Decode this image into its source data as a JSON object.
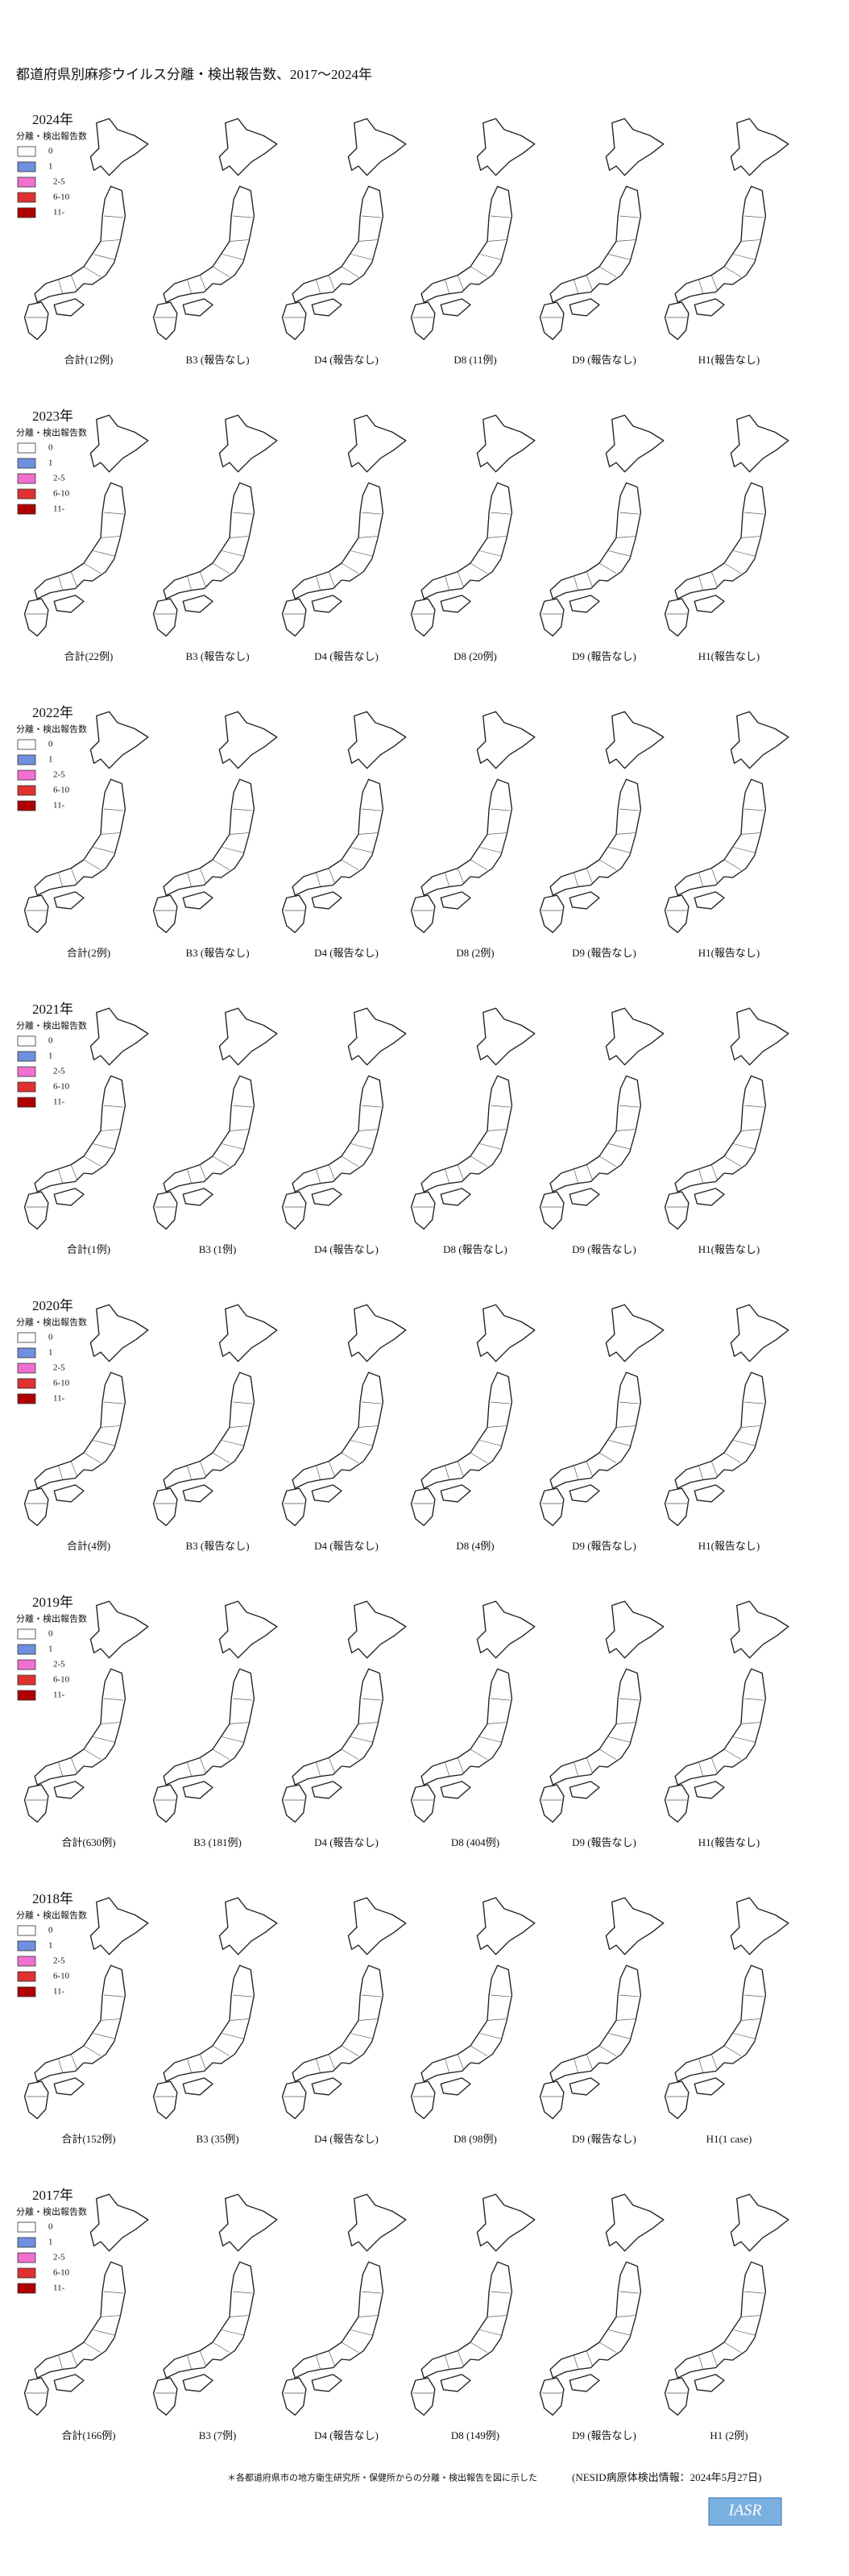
{
  "title": "都道府県別麻疹ウイルス分離・検出報告数、2017～2024年",
  "legend": {
    "title": "分離・検出報告数",
    "items": [
      "0",
      "1",
      "2-5",
      "6-10",
      "11-"
    ]
  },
  "years": [
    {
      "label": "2024年",
      "captions": [
        "合計(12例)",
        "B3 (報告なし)",
        "D4 (報告なし)",
        "D8 (11例)",
        "D9 (報告なし)",
        "H1(報告なし)"
      ]
    },
    {
      "label": "2023年",
      "captions": [
        "合計(22例)",
        "B3 (報告なし)",
        "D4 (報告なし)",
        "D8 (20例)",
        "D9 (報告なし)",
        "H1(報告なし)"
      ]
    },
    {
      "label": "2022年",
      "captions": [
        "合計(2例)",
        "B3 (報告なし)",
        "D4 (報告なし)",
        "D8 (2例)",
        "D9 (報告なし)",
        "H1(報告なし)"
      ]
    },
    {
      "label": "2021年",
      "captions": [
        "合計(1例)",
        "B3 (1例)",
        "D4 (報告なし)",
        "D8 (報告なし)",
        "D9 (報告なし)",
        "H1(報告なし)"
      ]
    },
    {
      "label": "2020年",
      "captions": [
        "合計(4例)",
        "B3 (報告なし)",
        "D4 (報告なし)",
        "D8 (4例)",
        "D9 (報告なし)",
        "H1(報告なし)"
      ]
    },
    {
      "label": "2019年",
      "captions": [
        "合計(630例)",
        "B3 (181例)",
        "D4 (報告なし)",
        "D8 (404例)",
        "D9 (報告なし)",
        "H1(報告なし)"
      ]
    },
    {
      "label": "2018年",
      "captions": [
        "合計(152例)",
        "B3 (35例)",
        "D4 (報告なし)",
        "D8 (98例)",
        "D9 (報告なし)",
        "H1(1 case)"
      ]
    },
    {
      "label": "2017年",
      "captions": [
        "合計(166例)",
        "B3 (7例)",
        "D4 (報告なし)",
        "D8 (149例)",
        "D9 (報告なし)",
        "H1 (2例)"
      ]
    }
  ],
  "footer": {
    "note": "＊各都道府県市の地方衛生研究所・保健所からの分離・検出報告を図に示した",
    "source": "(NESID病原体検出情報：2024年5月27日)",
    "logo": "IASR"
  }
}
